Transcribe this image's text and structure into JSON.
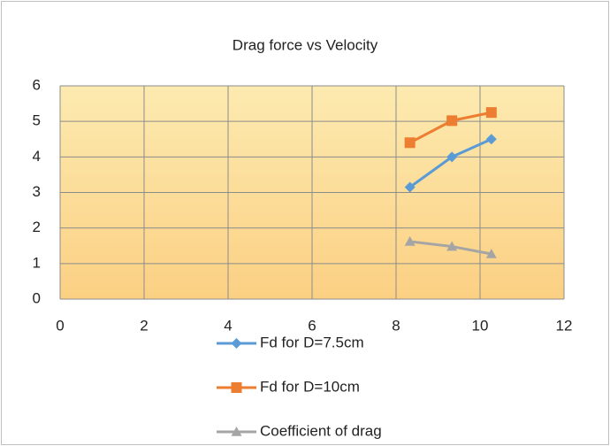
{
  "chart_data": {
    "type": "scatter",
    "title": "Drag force vs Velocity",
    "series": [
      {
        "name": "Fd for D=7.5cm",
        "color": "#5b9bd5",
        "marker": "diamond",
        "x": [
          8.33,
          9.33,
          10.27
        ],
        "values": [
          3.15,
          4.0,
          4.5
        ]
      },
      {
        "name": "Fd for D=10cm",
        "color": "#ed7d31",
        "marker": "square",
        "x": [
          8.33,
          9.33,
          10.27
        ],
        "values": [
          4.4,
          5.02,
          5.25
        ]
      },
      {
        "name": "Coefficient of drag",
        "color": "#a5a5a5",
        "marker": "triangle",
        "x": [
          8.33,
          9.33,
          10.27
        ],
        "values": [
          1.62,
          1.48,
          1.27
        ]
      }
    ],
    "xlim": [
      0,
      12
    ],
    "xticks": [
      0,
      2,
      4,
      6,
      8,
      10,
      12
    ],
    "ylim": [
      0,
      6
    ],
    "yticks": [
      0,
      1,
      2,
      3,
      4,
      5,
      6
    ],
    "grid": true,
    "legend": "bottom"
  }
}
